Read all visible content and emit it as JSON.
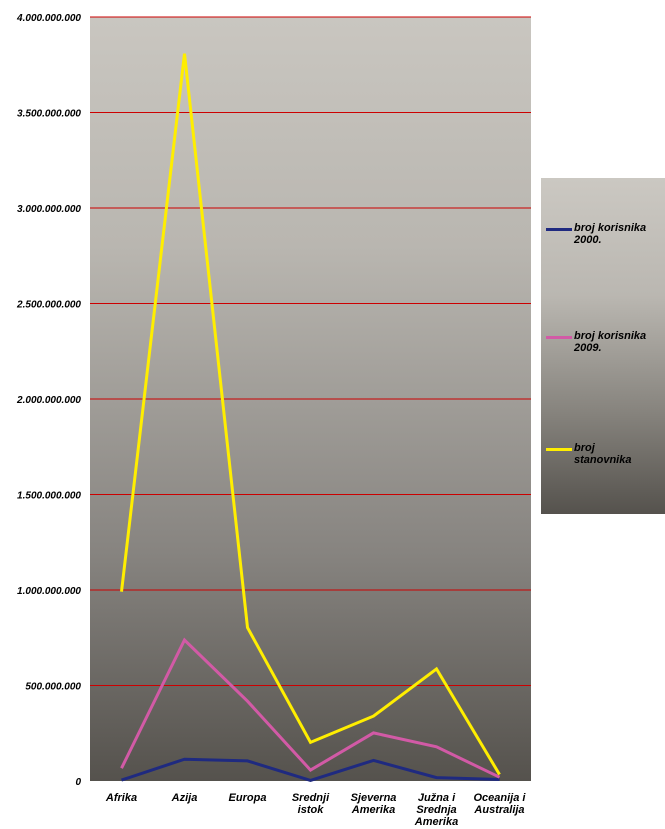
{
  "chart_data": {
    "type": "line",
    "categories": [
      "Afrika",
      "Azija",
      "Europa",
      "Srednji istok",
      "Sjeverna Amerika",
      "Južna i Srednja Amerika",
      "Oceanija i Australija"
    ],
    "category_label_lines": [
      [
        "Afrika"
      ],
      [
        "Azija"
      ],
      [
        "Europa"
      ],
      [
        "Srednji",
        "istok"
      ],
      [
        "Sjeverna",
        "Amerika"
      ],
      [
        "Južna i",
        "Srednja",
        "Amerika"
      ],
      [
        "Oceanija i",
        "Australija"
      ]
    ],
    "series": [
      {
        "name": "broj korisnika 2000.",
        "name_lines": [
          "broj korisnika",
          "2000."
        ],
        "color": "#1f2a80",
        "values": [
          4500000,
          114000000,
          105000000,
          3300000,
          108000000,
          18000000,
          7600000
        ]
      },
      {
        "name": "broj korisnika 2009.",
        "name_lines": [
          "broj korisnika",
          "2009."
        ],
        "color": "#d25aa6",
        "values": [
          67000000,
          738000000,
          418000000,
          57000000,
          252000000,
          179000000,
          20000000
        ]
      },
      {
        "name": "broj stanovnika",
        "name_lines": [
          "broj",
          "stanovnika"
        ],
        "color": "#ffee00",
        "values": [
          991000000,
          3808000000,
          803000000,
          202000000,
          340000000,
          587000000,
          34000000
        ]
      }
    ],
    "yticks": [
      "0",
      "500.000.000",
      "1.000.000.000",
      "1.500.000.000",
      "2.000.000.000",
      "2.500.000.000",
      "3.000.000.000",
      "3.500.000.000",
      "4.000.000.000"
    ],
    "ylim": [
      0,
      4000000000
    ],
    "grid": true,
    "grid_color": "#cc0000",
    "legend_position": "right"
  }
}
